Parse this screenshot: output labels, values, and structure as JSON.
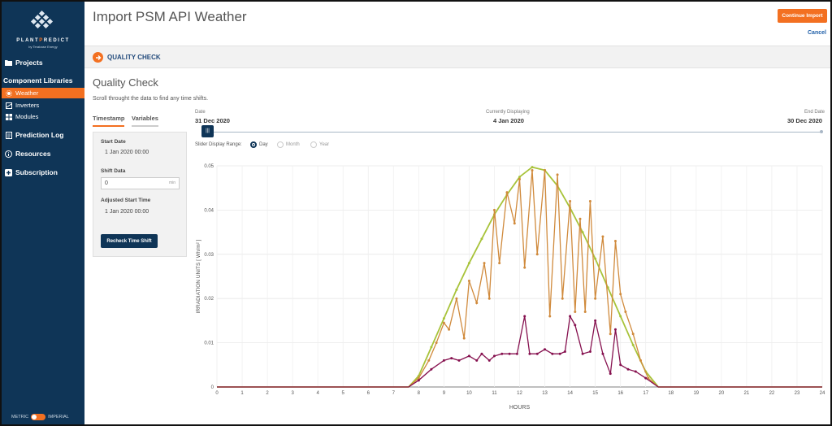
{
  "brand": {
    "name_a": "PLANT",
    "name_o": "P",
    "name_b": "REDICT",
    "tagline": "by Terabase Energy"
  },
  "sidebar": {
    "projects": "Projects",
    "component_libraries": "Component Libraries",
    "items": [
      {
        "label": "Weather",
        "icon": "sun-icon",
        "active": true
      },
      {
        "label": "Inverters",
        "icon": "inverter-icon",
        "active": false
      },
      {
        "label": "Modules",
        "icon": "grid-icon",
        "active": false
      }
    ],
    "prediction_log": "Prediction Log",
    "resources": "Resources",
    "subscription": "Subscription",
    "units": {
      "metric": "METRIC",
      "imperial": "IMPERIAL"
    }
  },
  "header": {
    "title": "Import PSM API Weather",
    "continue": "Continue Import",
    "cancel": "Cancel"
  },
  "step": {
    "label": "QUALITY CHECK"
  },
  "main": {
    "title": "Quality Check",
    "instructions": "Scroll throught the data to find any time shifts.",
    "tabs": [
      {
        "label": "Timestamp",
        "active": true
      },
      {
        "label": "Variables",
        "active": false
      }
    ],
    "start_date_label": "Start Date",
    "start_date_value": "1 Jan 2020 00:00",
    "shift_label": "Shift Data",
    "shift_value": "0",
    "shift_unit": "min",
    "adjusted_label": "Adjusted Start Time",
    "adjusted_value": "1 Jan 2020 00:00",
    "recheck": "Recheck Time Shift"
  },
  "slider": {
    "start_label": "Date",
    "start_value": "31 Dec 2020",
    "current_label": "Currently Displaying",
    "current_value": "4 Jan 2020",
    "end_label": "End Date",
    "end_value": "30 Dec 2020",
    "handle": "|||",
    "range_label": "Slider Display Range:",
    "options": [
      {
        "label": "Day",
        "selected": true
      },
      {
        "label": "Month",
        "selected": false
      },
      {
        "label": "Year",
        "selected": false
      }
    ]
  },
  "chart_data": {
    "type": "line",
    "xlabel": "HOURS",
    "ylabel": "IRRADIATION UNITS [ Wh/m² ]",
    "xlim": [
      0,
      24
    ],
    "ylim": [
      0,
      0.05
    ],
    "xticks": [
      0,
      1,
      2,
      3,
      4,
      5,
      6,
      7,
      8,
      9,
      10,
      11,
      12,
      13,
      14,
      15,
      16,
      17,
      18,
      19,
      20,
      21,
      22,
      23,
      24
    ],
    "yticks": [
      0,
      0.01,
      0.02,
      0.03,
      0.04,
      0.05
    ],
    "ytick_labels": [
      "0",
      "0.01",
      "0.02",
      "0.03",
      "0.04",
      "0.05"
    ],
    "grid": true,
    "series": [
      {
        "color": "#a8c33a",
        "x": [
          0,
          7.6,
          8,
          8.5,
          9,
          9.5,
          10,
          10.5,
          11,
          11.5,
          12,
          12.5,
          13,
          13.5,
          14,
          14.5,
          15,
          15.5,
          16,
          16.5,
          17,
          17.5,
          24
        ],
        "y": [
          0,
          0,
          0.0025,
          0.009,
          0.0155,
          0.022,
          0.028,
          0.0335,
          0.039,
          0.0435,
          0.0475,
          0.0497,
          0.049,
          0.0455,
          0.0405,
          0.035,
          0.029,
          0.0225,
          0.016,
          0.0095,
          0.0035,
          0,
          0
        ]
      },
      {
        "color": "#d08a3c",
        "x": [
          0,
          7.6,
          8,
          8.4,
          8.7,
          9,
          9.2,
          9.5,
          9.8,
          10,
          10.3,
          10.6,
          10.8,
          11,
          11.2,
          11.5,
          11.8,
          12,
          12.2,
          12.5,
          12.7,
          13,
          13.2,
          13.5,
          13.7,
          14,
          14.2,
          14.4,
          14.6,
          14.8,
          15,
          15.3,
          15.6,
          15.8,
          16,
          16.2,
          16.5,
          16.8,
          17.1,
          17.5,
          24
        ],
        "y": [
          0,
          0,
          0.002,
          0.006,
          0.01,
          0.0145,
          0.013,
          0.02,
          0.011,
          0.024,
          0.019,
          0.028,
          0.02,
          0.04,
          0.028,
          0.044,
          0.037,
          0.047,
          0.027,
          0.049,
          0.03,
          0.049,
          0.016,
          0.048,
          0.02,
          0.042,
          0.017,
          0.038,
          0.017,
          0.042,
          0.02,
          0.034,
          0.012,
          0.033,
          0.021,
          0.017,
          0.012,
          0.006,
          0.002,
          0,
          0
        ]
      },
      {
        "color": "#86114f",
        "x": [
          0,
          7.6,
          8,
          8.5,
          9,
          9.3,
          9.6,
          10,
          10.3,
          10.5,
          10.8,
          11,
          11.3,
          11.6,
          11.9,
          12.2,
          12.4,
          12.7,
          13,
          13.3,
          13.6,
          13.8,
          14,
          14.2,
          14.5,
          14.8,
          15,
          15.3,
          15.6,
          15.8,
          16,
          16.3,
          16.6,
          17,
          17.5,
          24
        ],
        "y": [
          0,
          0,
          0.0015,
          0.004,
          0.006,
          0.0065,
          0.006,
          0.007,
          0.006,
          0.0075,
          0.006,
          0.007,
          0.0075,
          0.0075,
          0.0075,
          0.016,
          0.0075,
          0.0075,
          0.0085,
          0.0075,
          0.0075,
          0.008,
          0.016,
          0.014,
          0.0075,
          0.008,
          0.015,
          0.0075,
          0.003,
          0.013,
          0.005,
          0.004,
          0.0035,
          0.002,
          0,
          0
        ]
      }
    ]
  }
}
